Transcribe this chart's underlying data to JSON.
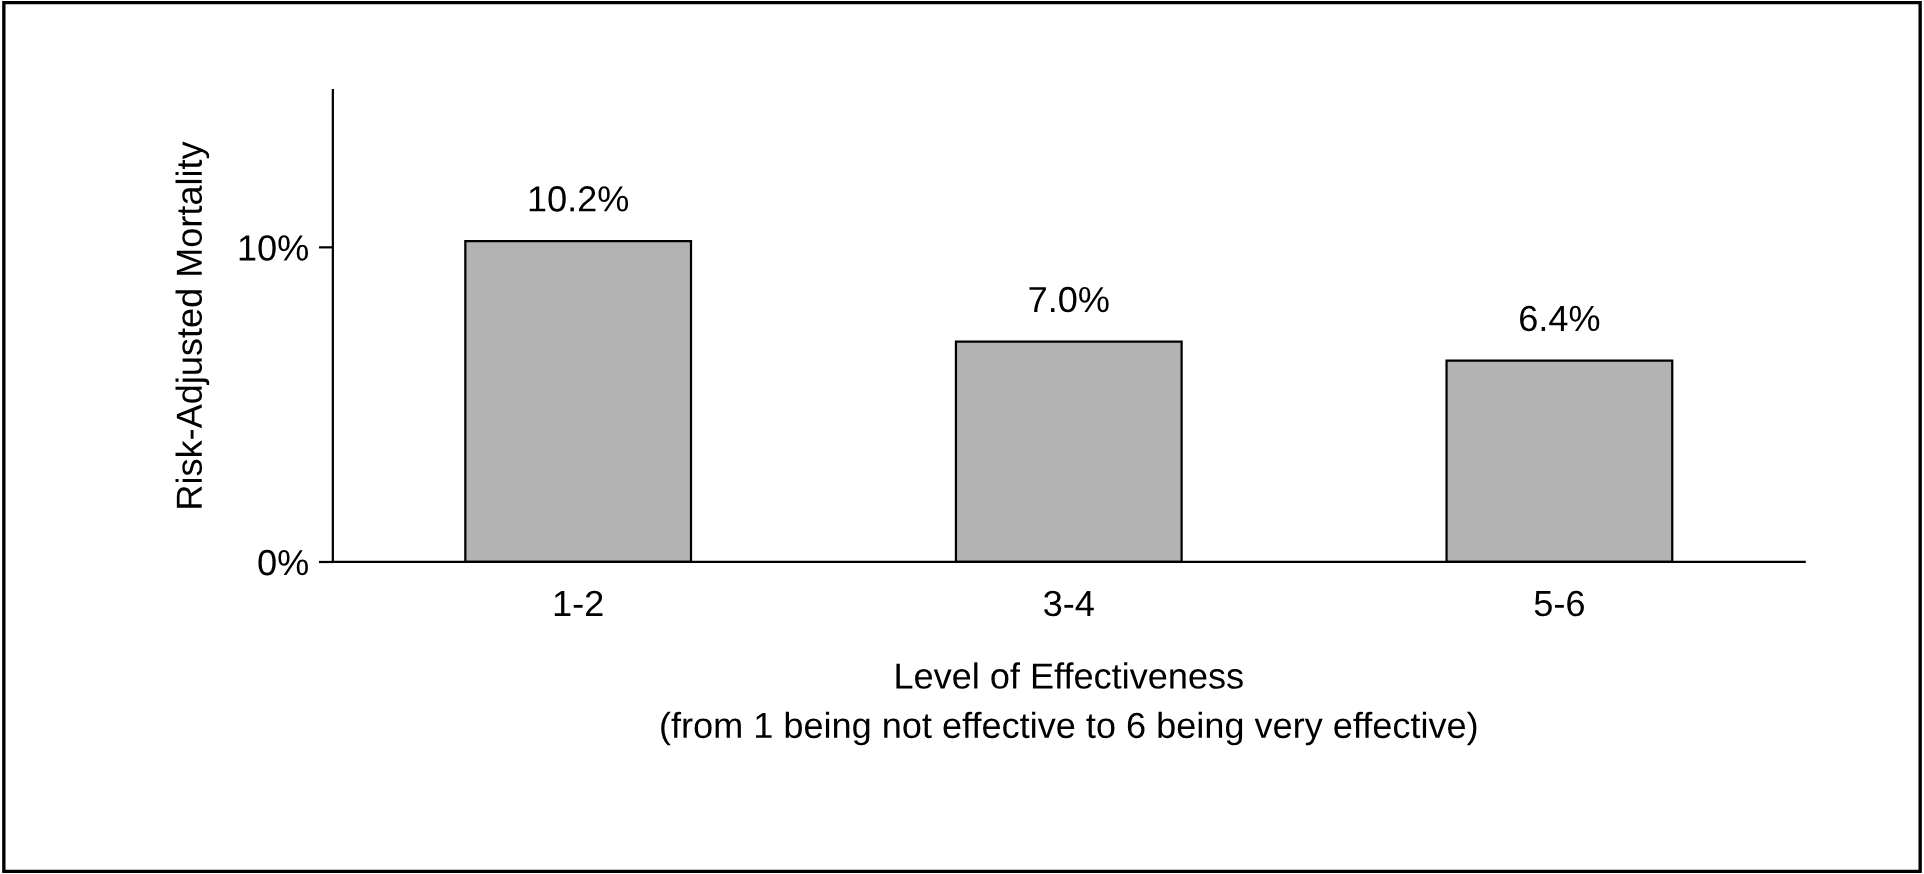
{
  "chart_data": {
    "type": "bar",
    "categories": [
      "1-2",
      "3-4",
      "5-6"
    ],
    "values": [
      10.2,
      7.0,
      6.4
    ],
    "value_labels": [
      "10.2%",
      "7.0%",
      "6.4%"
    ],
    "color": "#b3b3b3",
    "xlabel": "Level of Effectiveness\n(from 1 being not effective to 6 being very effective)",
    "ylabel": "Risk-Adjusted Mortality",
    "ylim": [
      0,
      15
    ],
    "yticks": [
      {
        "value": 0,
        "label": "0%"
      },
      {
        "value": 10,
        "label": "10%"
      }
    ],
    "grid": false,
    "legend": false
  }
}
